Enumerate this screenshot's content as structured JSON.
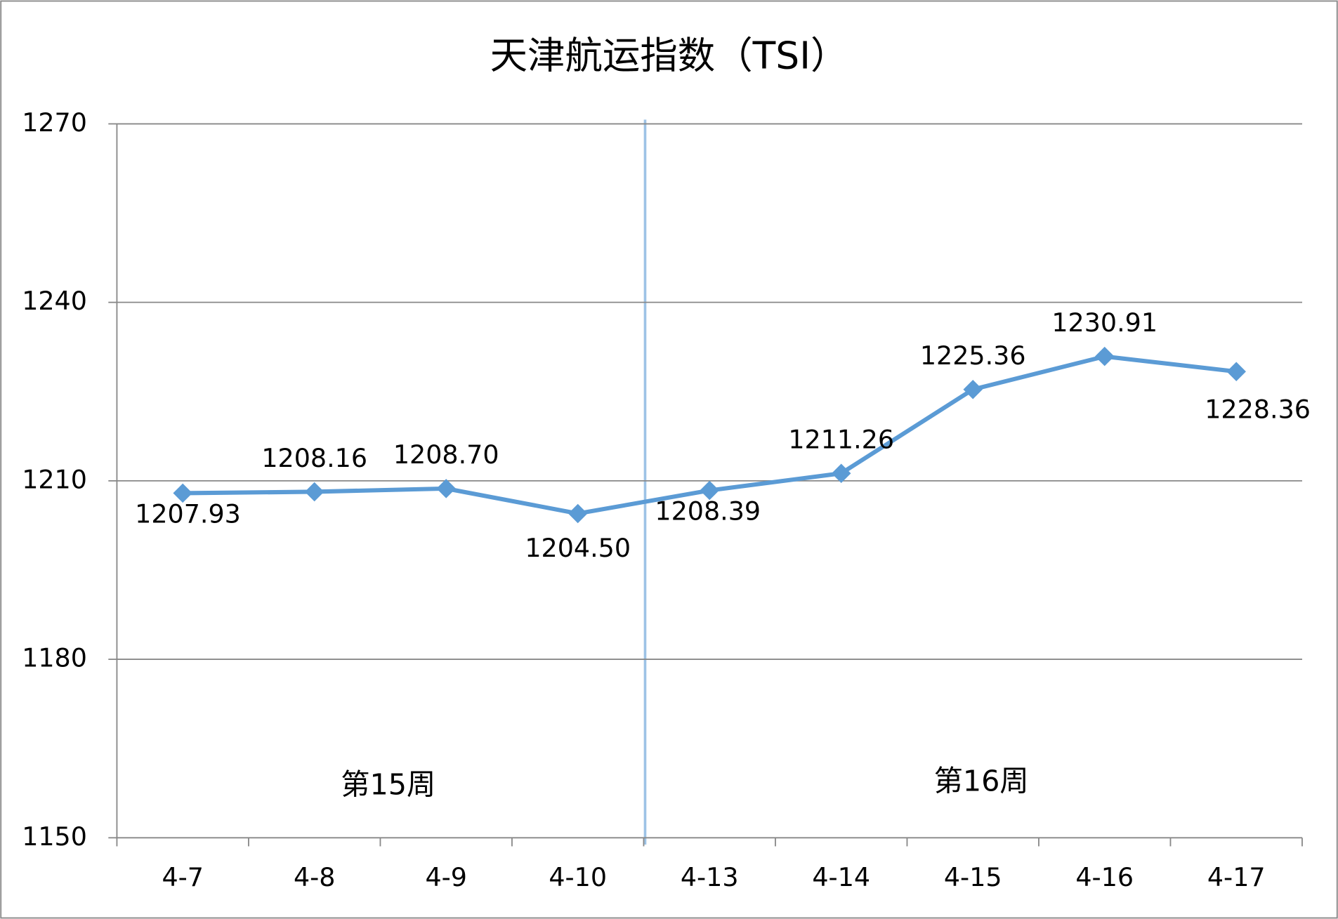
{
  "chart_data": {
    "type": "line",
    "title": "天津航运指数（TSI）",
    "categories": [
      "4-7",
      "4-8",
      "4-9",
      "4-10",
      "4-13",
      "4-14",
      "4-15",
      "4-16",
      "4-17"
    ],
    "series": [
      {
        "name": "TSI",
        "color": "#5b9bd5",
        "values": [
          1207.93,
          1208.16,
          1208.7,
          1204.5,
          1208.39,
          1211.26,
          1225.36,
          1230.91,
          1228.36
        ],
        "value_labels": [
          "1207.93",
          "1208.16",
          "1208.70",
          "1204.50",
          "1208.39",
          "1211.26",
          "1225.36",
          "1230.91",
          "1228.36"
        ]
      }
    ],
    "annotations": [
      "第15周",
      "第16周"
    ],
    "ylim": [
      1150,
      1270
    ],
    "yticks": [
      1150,
      1180,
      1210,
      1240,
      1270
    ],
    "grid": true
  }
}
